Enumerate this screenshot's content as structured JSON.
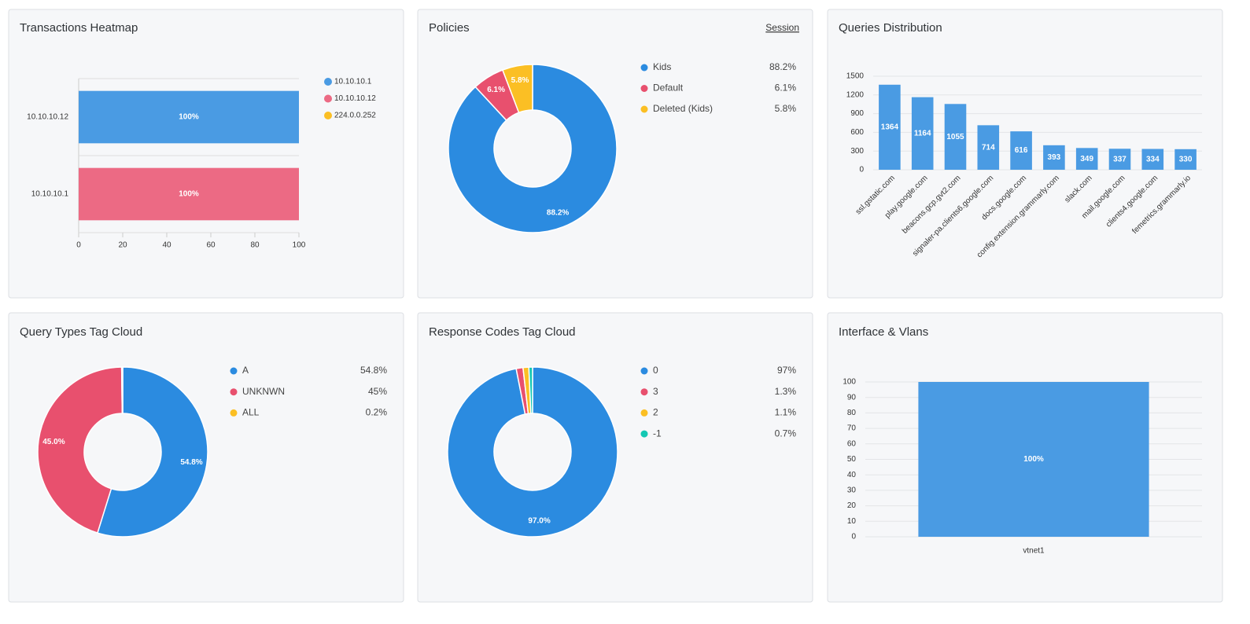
{
  "chart_data": [
    {
      "type": "bar",
      "orientation": "horizontal",
      "title": "Transactions Heatmap",
      "categories": [
        "10.10.10.12",
        "10.10.10.1"
      ],
      "series": [
        {
          "name": "10.10.10.1",
          "color": "#4a9be3",
          "values": [
            100,
            null
          ],
          "value_labels": [
            "100%",
            null
          ]
        },
        {
          "name": "10.10.10.12",
          "color": "#ec6a84",
          "values": [
            null,
            100
          ],
          "value_labels": [
            null,
            "100%"
          ]
        },
        {
          "name": "224.0.0.252",
          "color": "#fbbf24",
          "values": [
            null,
            null
          ],
          "value_labels": [
            null,
            null
          ]
        }
      ],
      "xlim": [
        0,
        100
      ],
      "xticks": [
        0,
        20,
        40,
        60,
        80,
        100
      ],
      "grid": false,
      "legend": "right"
    },
    {
      "type": "donut",
      "title": "Policies",
      "action": "Session",
      "categories": [
        "Kids",
        "Default",
        "Deleted (Kids)"
      ],
      "values": [
        88.2,
        6.1,
        5.8
      ],
      "value_labels": [
        "88.2%",
        "6.1%",
        "5.8%"
      ],
      "legend_labels": [
        "88.2%",
        "6.1%",
        "5.8%"
      ],
      "colors": [
        "#2b8be0",
        "#e8506e",
        "#fbbf24"
      ]
    },
    {
      "type": "bar",
      "title": "Queries Distribution",
      "categories": [
        "ssl.gstatic.com",
        "play.google.com",
        "beacons.gcp.gvt2.com",
        "signaler-pa.clients6.google.com",
        "docs.google.com",
        "config.extension.grammarly.com",
        "slack.com",
        "mail.google.com",
        "clients4.google.com",
        "femetrics.grammarly.io"
      ],
      "values": [
        1364,
        1164,
        1055,
        714,
        616,
        393,
        349,
        337,
        334,
        330
      ],
      "color": "#4a9be3",
      "ylim": [
        0,
        1500
      ],
      "yticks": [
        0,
        300,
        600,
        900,
        1200,
        1500
      ],
      "grid": true,
      "rotate_labels": true
    },
    {
      "type": "donut",
      "title": "Query Types Tag Cloud",
      "categories": [
        "A",
        "UNKNWN",
        "ALL"
      ],
      "values": [
        54.8,
        45,
        0.2
      ],
      "value_labels": [
        "54.8%",
        "45.0%",
        null
      ],
      "legend_labels": [
        "54.8%",
        "45%",
        "0.2%"
      ],
      "colors": [
        "#2b8be0",
        "#e8506e",
        "#fbbf24"
      ]
    },
    {
      "type": "donut",
      "title": "Response Codes Tag Cloud",
      "categories": [
        "0",
        "3",
        "2",
        "-1"
      ],
      "values": [
        97,
        1.3,
        1.1,
        0.7
      ],
      "value_labels": [
        "97.0%",
        null,
        null,
        null
      ],
      "legend_labels": [
        "97%",
        "1.3%",
        "1.1%",
        "0.7%"
      ],
      "colors": [
        "#2b8be0",
        "#e8506e",
        "#fbbf24",
        "#14c8b4"
      ]
    },
    {
      "type": "bar",
      "title": "Interface & Vlans",
      "categories": [
        "vtnet1"
      ],
      "values": [
        100
      ],
      "value_labels": [
        "100%"
      ],
      "color": "#4a9be3",
      "ylim": [
        0,
        100
      ],
      "yticks": [
        0,
        10,
        20,
        30,
        40,
        50,
        60,
        70,
        80,
        90,
        100
      ],
      "grid": true
    }
  ]
}
